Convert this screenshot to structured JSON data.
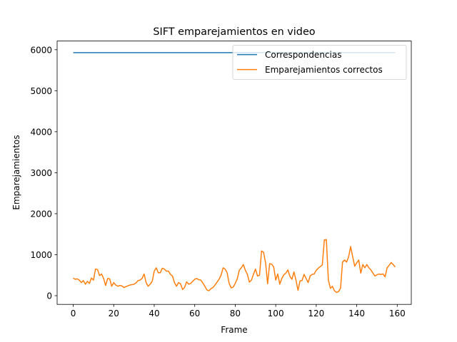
{
  "chart_data": {
    "type": "line",
    "title": "SIFT emparejamientos en video",
    "x_label": "Frame",
    "y_label": "Emparejamientos",
    "x": [
      0,
      1,
      2,
      3,
      4,
      5,
      6,
      7,
      8,
      9,
      10,
      11,
      12,
      13,
      14,
      15,
      16,
      17,
      18,
      19,
      20,
      21,
      22,
      23,
      24,
      25,
      26,
      27,
      28,
      29,
      30,
      31,
      32,
      33,
      34,
      35,
      36,
      37,
      38,
      39,
      40,
      41,
      42,
      43,
      44,
      45,
      46,
      47,
      48,
      49,
      50,
      51,
      52,
      53,
      54,
      55,
      56,
      57,
      58,
      59,
      60,
      61,
      62,
      63,
      64,
      65,
      66,
      67,
      68,
      69,
      70,
      71,
      72,
      73,
      74,
      75,
      76,
      77,
      78,
      79,
      80,
      81,
      82,
      83,
      84,
      85,
      86,
      87,
      88,
      89,
      90,
      91,
      92,
      93,
      94,
      95,
      96,
      97,
      98,
      99,
      100,
      101,
      102,
      103,
      104,
      105,
      106,
      107,
      108,
      109,
      110,
      111,
      112,
      113,
      114,
      115,
      116,
      117,
      118,
      119,
      120,
      121,
      122,
      123,
      124,
      125,
      126,
      127,
      128,
      129,
      130,
      131,
      132,
      133,
      134,
      135,
      136,
      137,
      138,
      139,
      140,
      141,
      142,
      143,
      144,
      145,
      146,
      147,
      148,
      149,
      150,
      151,
      152,
      153,
      154,
      155,
      156,
      157,
      158,
      159
    ],
    "series": [
      {
        "name": "Correspondencias",
        "color": "#1f77b4",
        "values": [
          5930,
          5930,
          5930,
          5930,
          5930,
          5930,
          5930,
          5930,
          5930,
          5930,
          5930,
          5930,
          5930,
          5930,
          5930,
          5930,
          5930,
          5930,
          5930,
          5930,
          5930,
          5930,
          5930,
          5930,
          5930,
          5930,
          5930,
          5930,
          5930,
          5930,
          5930,
          5930,
          5930,
          5930,
          5930,
          5930,
          5930,
          5930,
          5930,
          5930,
          5930,
          5930,
          5930,
          5930,
          5930,
          5930,
          5930,
          5930,
          5930,
          5930,
          5930,
          5930,
          5930,
          5930,
          5930,
          5930,
          5930,
          5930,
          5930,
          5930,
          5930,
          5930,
          5930,
          5930,
          5930,
          5930,
          5930,
          5930,
          5930,
          5930,
          5930,
          5930,
          5930,
          5930,
          5930,
          5930,
          5930,
          5930,
          5930,
          5930,
          5930,
          5930,
          5930,
          5930,
          5930,
          5930,
          5930,
          5930,
          5930,
          5930,
          5930,
          5930,
          5930,
          5930,
          5930,
          5930,
          5930,
          5930,
          5930,
          5930,
          5930,
          5930,
          5930,
          5930,
          5930,
          5930,
          5930,
          5930,
          5930,
          5930,
          5930,
          5930,
          5930,
          5930,
          5930,
          5930,
          5930,
          5930,
          5930,
          5930,
          5930,
          5930,
          5930,
          5930,
          5930,
          5930,
          5930,
          5930,
          5930,
          5930,
          5930,
          5930,
          5930,
          5930,
          5930,
          5930,
          5930,
          5930,
          5930,
          5930,
          5930,
          5930,
          5930,
          5930,
          5930,
          5930,
          5930,
          5930,
          5930,
          5930,
          5930,
          5930,
          5930,
          5930,
          5930,
          5930,
          5930,
          5930,
          5930,
          5930
        ]
      },
      {
        "name": "Emparejamientos correctos",
        "color": "#ff7f0e",
        "values": [
          430,
          400,
          410,
          380,
          320,
          370,
          280,
          350,
          300,
          430,
          380,
          650,
          640,
          490,
          530,
          420,
          250,
          420,
          410,
          230,
          320,
          260,
          230,
          250,
          240,
          200,
          220,
          240,
          260,
          270,
          280,
          310,
          370,
          380,
          420,
          530,
          320,
          230,
          280,
          350,
          600,
          680,
          560,
          560,
          670,
          650,
          600,
          600,
          520,
          480,
          320,
          230,
          320,
          290,
          150,
          200,
          340,
          280,
          300,
          350,
          400,
          420,
          390,
          380,
          310,
          230,
          140,
          120,
          170,
          200,
          260,
          330,
          400,
          500,
          680,
          650,
          560,
          300,
          190,
          210,
          300,
          410,
          620,
          680,
          760,
          620,
          520,
          330,
          380,
          520,
          650,
          480,
          500,
          1090,
          1060,
          800,
          290,
          780,
          770,
          700,
          380,
          530,
          280,
          420,
          510,
          550,
          630,
          470,
          400,
          580,
          380,
          130,
          360,
          370,
          520,
          420,
          320,
          480,
          520,
          530,
          620,
          670,
          710,
          750,
          1360,
          1370,
          380,
          180,
          230,
          120,
          80,
          100,
          180,
          820,
          870,
          820,
          950,
          1200,
          950,
          720,
          800,
          870,
          550,
          760,
          680,
          760,
          680,
          630,
          550,
          480,
          510,
          530,
          520,
          530,
          460,
          680,
          740,
          810,
          760,
          700
        ]
      }
    ],
    "xlim": [
      -7.95,
      166.95
    ],
    "ylim": [
      -212,
      6212
    ],
    "xticks": [
      0,
      20,
      40,
      60,
      80,
      100,
      120,
      140,
      160
    ],
    "yticks": [
      0,
      1000,
      2000,
      3000,
      4000,
      5000,
      6000
    ],
    "legend": "upper right"
  }
}
